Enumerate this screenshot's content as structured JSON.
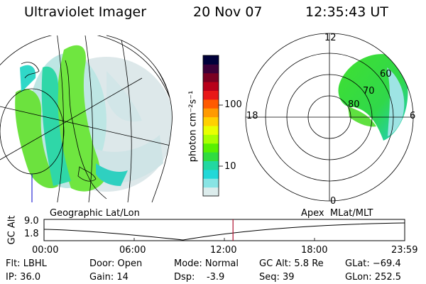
{
  "header": {
    "instrument": "Ultraviolet Imager",
    "date": "20 Nov 07",
    "time": "12:35:43 UT"
  },
  "colorbar": {
    "unit_label": "photon cm⁻²s⁻¹",
    "ticks": [
      "100",
      "10"
    ],
    "colors": [
      "#00003a",
      "#3c0038",
      "#7a0022",
      "#b8001a",
      "#e81818",
      "#ff5a00",
      "#ff9a00",
      "#ffd000",
      "#e8ff00",
      "#a8ff00",
      "#58f000",
      "#30dc40",
      "#22d8a0",
      "#22d8d8",
      "#88e4e4",
      "#dcecec"
    ]
  },
  "polar_plot": {
    "mlt_labels": [
      "12",
      "18",
      "6",
      "0"
    ],
    "mlat_labels": [
      "60",
      "70",
      "80"
    ]
  },
  "orbit_panel": {
    "left_title": "Geographic Lat/Lon",
    "right_title": "Apex  MLat/MLT",
    "y_axis_label": "GC Alt",
    "y_ticks": [
      "9.0",
      "1.8"
    ],
    "x_ticks": [
      "00:00",
      "06:00",
      "12:00",
      "18:00",
      "23:59"
    ],
    "current_time_fraction": 0.524
  },
  "info": {
    "flt": "Flt: LBHL",
    "ip": "IP: 36.0",
    "door": "Door: Open",
    "gain": "Gain: 14",
    "mode": "Mode: Normal",
    "dsp": "Dsp:    -3.9",
    "gc_alt": "GC Alt: 5.8 Re",
    "seq": "Seq: 39",
    "glat": "GLat: −69.4",
    "glon": "GLon: 252.5"
  }
}
